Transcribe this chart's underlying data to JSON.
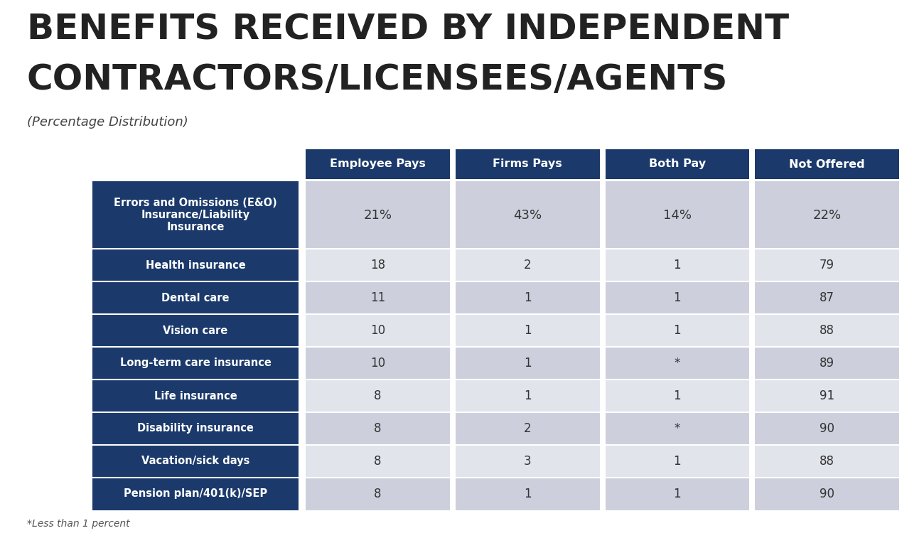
{
  "title_line1": "BENEFITS RECEIVED BY INDEPENDENT",
  "title_line2": "CONTRACTORS/LICENSEES/AGENTS",
  "subtitle": "(Percentage Distribution)",
  "footnote": "*Less than 1 percent",
  "col_headers": [
    "Employee Pays",
    "Firms Pays",
    "Both Pay",
    "Not Offered"
  ],
  "row_labels": [
    "Errors and Omissions (E&O)\nInsurance/Liability\nInsurance",
    "Health insurance",
    "Dental care",
    "Vision care",
    "Long-term care insurance",
    "Life insurance",
    "Disability insurance",
    "Vacation/sick days",
    "Pension plan/401(k)/SEP"
  ],
  "data": [
    [
      "21%",
      "43%",
      "14%",
      "22%"
    ],
    [
      "18",
      "2",
      "1",
      "79"
    ],
    [
      "11",
      "1",
      "1",
      "87"
    ],
    [
      "10",
      "1",
      "1",
      "88"
    ],
    [
      "10",
      "1",
      "*",
      "89"
    ],
    [
      "8",
      "1",
      "1",
      "91"
    ],
    [
      "8",
      "2",
      "*",
      "90"
    ],
    [
      "8",
      "3",
      "1",
      "88"
    ],
    [
      "8",
      "1",
      "1",
      "90"
    ]
  ],
  "header_bg": "#1b3a6b",
  "header_text": "#ffffff",
  "row_label_bg": "#1b3a6b",
  "row_label_text": "#ffffff",
  "cell_bg_even": "#cdd0dc",
  "cell_bg_odd": "#e2e4ec",
  "bg_color": "#ffffff",
  "title_color": "#222222",
  "subtitle_color": "#444444",
  "data_text_color": "#333333",
  "footnote_color": "#555555"
}
